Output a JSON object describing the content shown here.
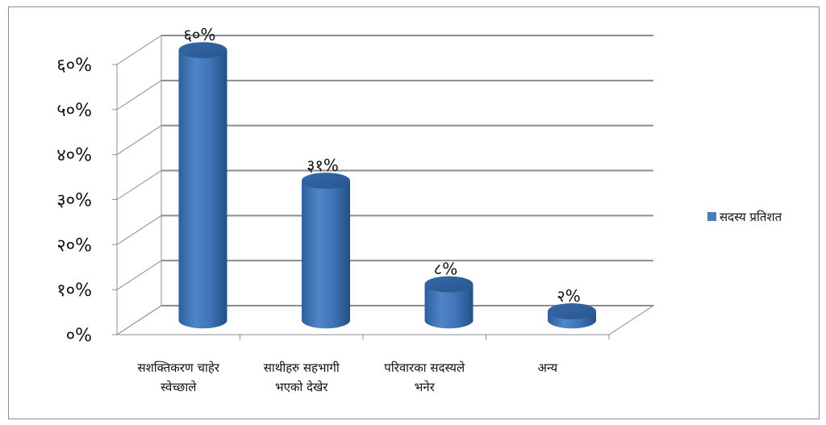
{
  "chart_data": {
    "type": "bar",
    "categories": [
      [
        "सशक्तिकरण चाहेर",
        "स्वेच्छाले"
      ],
      [
        "साथीहरु सहभागी",
        "भएको देखेर"
      ],
      [
        "परिवारका सदस्यले",
        "भनेर"
      ],
      [
        "अन्य"
      ]
    ],
    "series": [
      {
        "name": "सदस्य प्रतिशत",
        "values": [
          60,
          31,
          8,
          2
        ],
        "data_labels": [
          "६०%",
          "३१%",
          "८%",
          "२%"
        ],
        "color": "#4a7ebb"
      }
    ],
    "yticks": [
      "०%",
      "१०%",
      "२०%",
      "३०%",
      "४०%",
      "५०%",
      "६०%"
    ],
    "ylim": [
      0,
      60
    ],
    "grid": true,
    "legend_position": "right"
  }
}
